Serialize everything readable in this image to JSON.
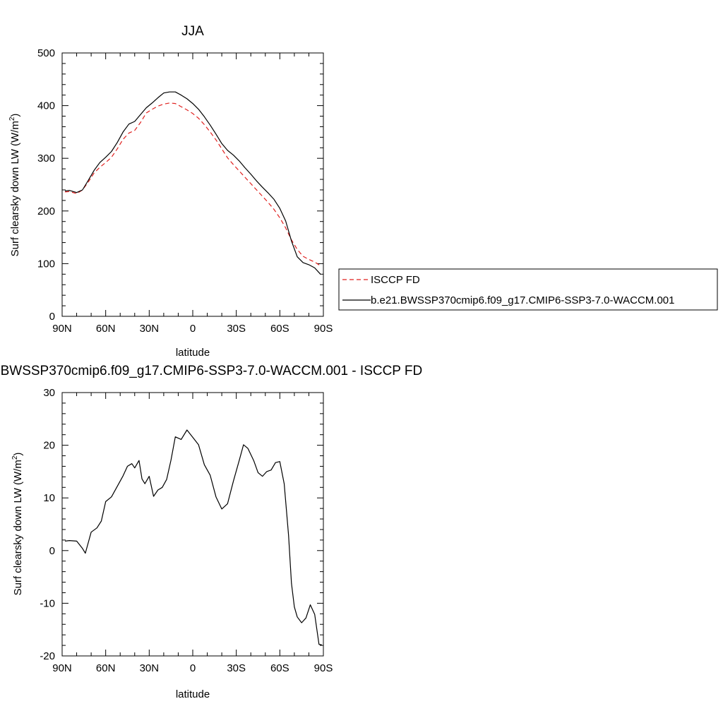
{
  "chart_data": [
    {
      "type": "line",
      "title": "JJA",
      "xlabel": "latitude",
      "ylabel": "Surf clearsky down LW (W/m",
      "ylabel_sup": "2",
      "ylabel_tail": ")",
      "xlim": [
        90,
        -90
      ],
      "ylim": [
        0,
        500
      ],
      "xticks": [
        90,
        60,
        30,
        0,
        -30,
        -60,
        -90
      ],
      "xtick_labels": [
        "90N",
        "60N",
        "30N",
        "0",
        "30S",
        "60S",
        "90S"
      ],
      "yticks": [
        0,
        100,
        200,
        300,
        400,
        500
      ],
      "ytick_labels": [
        "0",
        "100",
        "200",
        "300",
        "400",
        "500"
      ],
      "legend": "right",
      "x": [
        88,
        85,
        80,
        76,
        72,
        68,
        64,
        60,
        56,
        52,
        48,
        44,
        40,
        36,
        32,
        28,
        24,
        20,
        16,
        12,
        8,
        4,
        0,
        -4,
        -8,
        -12,
        -16,
        -20,
        -24,
        -28,
        -32,
        -36,
        -40,
        -44,
        -48,
        -52,
        -56,
        -60,
        -64,
        -68,
        -72,
        -76,
        -80,
        -84,
        -88
      ],
      "series": [
        {
          "name": "ISCCP FD",
          "color": "#e0201e",
          "dash": true,
          "values": [
            236,
            237,
            233,
            240,
            255,
            272,
            283,
            292,
            302,
            318,
            336,
            348,
            353,
            368,
            386,
            393,
            399,
            403,
            405,
            404,
            398,
            392,
            385,
            376,
            364,
            350,
            335,
            318,
            301,
            288,
            276,
            264,
            252,
            240,
            228,
            216,
            203,
            187,
            168,
            145,
            127,
            114,
            108,
            103,
            96
          ]
        },
        {
          "name": "b.e21.BWSSP370cmip6.f09_g17.CMIP6-SSP3-7.0-WACCM.001",
          "color": "#000000",
          "dash": false,
          "values": [
            238,
            239,
            235,
            240,
            258,
            277,
            292,
            302,
            313,
            330,
            350,
            365,
            370,
            383,
            396,
            405,
            415,
            424,
            426,
            426,
            420,
            413,
            404,
            393,
            379,
            363,
            346,
            328,
            315,
            306,
            295,
            282,
            270,
            257,
            245,
            234,
            222,
            205,
            181,
            143,
            113,
            102,
            98,
            92,
            80
          ]
        }
      ]
    },
    {
      "type": "line",
      "title": "b.e21.BWSSP370cmip6.f09_g17.CMIP6-SSP3-7.0-WACCM.001 - ISCCP FD",
      "xlabel": "latitude",
      "ylabel": "Surf clearsky down LW (W/m",
      "ylabel_sup": "2",
      "ylabel_tail": ")",
      "xlim": [
        90,
        -90
      ],
      "ylim": [
        -20,
        30
      ],
      "xticks": [
        90,
        60,
        30,
        0,
        -30,
        -60,
        -90
      ],
      "xtick_labels": [
        "90N",
        "60N",
        "30N",
        "0",
        "30S",
        "60S",
        "90S"
      ],
      "yticks": [
        -20,
        -10,
        0,
        10,
        20,
        30
      ],
      "ytick_labels": [
        "-20",
        "-10",
        "0",
        "10",
        "20",
        "30"
      ],
      "x": [
        88,
        85,
        80,
        76,
        74,
        70,
        66,
        63,
        60,
        56,
        52,
        48,
        45,
        42,
        40,
        37,
        35,
        33,
        30,
        27,
        24,
        21,
        18,
        15,
        12,
        8,
        4,
        0,
        -4,
        -8,
        -12,
        -16,
        -20,
        -24,
        -28,
        -32,
        -35,
        -38,
        -42,
        -45,
        -48,
        -51,
        -54,
        -57,
        -60,
        -63,
        -66,
        -68,
        -70,
        -72,
        -75,
        -78,
        -81,
        -84,
        -87,
        -89
      ],
      "series": [
        {
          "color": "#000000",
          "values": [
            1.8,
            1.9,
            1.8,
            0.4,
            -0.5,
            3.5,
            4.3,
            5.6,
            9.3,
            10.2,
            12.2,
            14.2,
            16.0,
            16.5,
            15.7,
            17.1,
            13.6,
            12.7,
            14.1,
            10.3,
            11.5,
            12.0,
            13.5,
            17.2,
            21.6,
            21.1,
            22.9,
            21.5,
            20.1,
            16.3,
            14.3,
            10.2,
            7.9,
            8.9,
            13.2,
            17.1,
            20.1,
            19.4,
            17.1,
            14.8,
            14.1,
            15.0,
            15.3,
            16.7,
            16.9,
            12.7,
            2.9,
            -6.2,
            -10.7,
            -12.6,
            -13.7,
            -12.8,
            -10.3,
            -12.1,
            -17.8,
            -17.9
          ]
        }
      ]
    }
  ]
}
